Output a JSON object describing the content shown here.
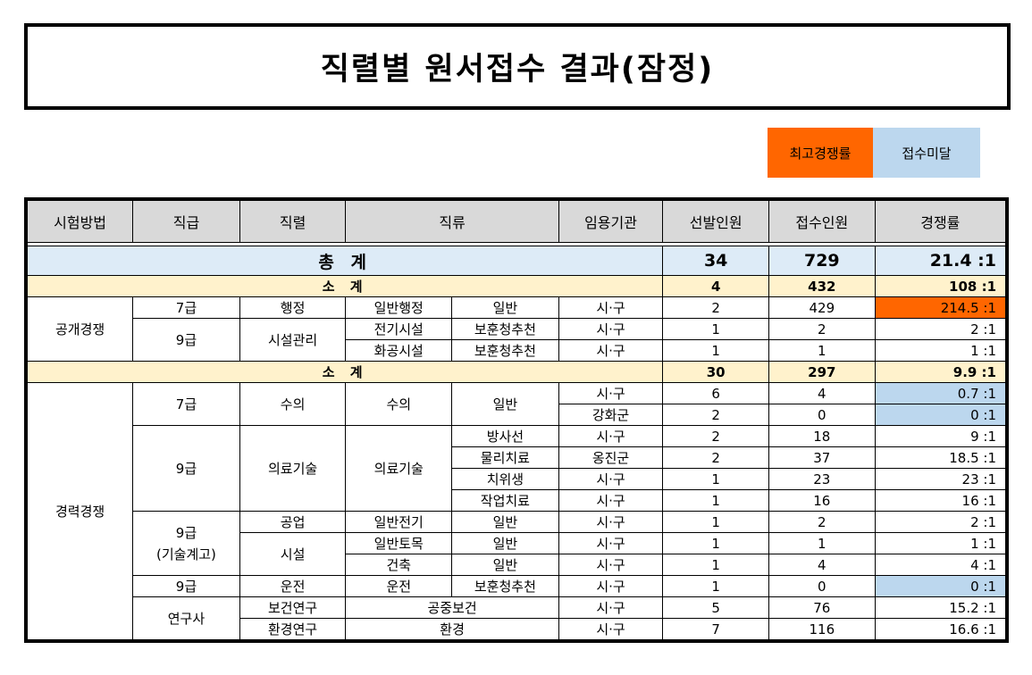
{
  "title": "직렬별 원서접수 결과(잠정)",
  "legend": {
    "max_label": "최고경쟁률",
    "under_label": "접수미달",
    "max_color": "#ff6600",
    "under_color": "#bcd7ee"
  },
  "headers": [
    "시험방법",
    "직급",
    "직렬",
    "직류",
    "임용기관",
    "선발인원",
    "접수인원",
    "경쟁률"
  ],
  "total": {
    "label": "총 계",
    "selected": "34",
    "applied": "729",
    "ratio": "21.4 :1"
  },
  "open": {
    "method": "공개경쟁",
    "subtotal": {
      "label": "소 계",
      "selected": "4",
      "applied": "432",
      "ratio": "108 :1"
    },
    "rows": [
      {
        "grade": "7급",
        "series": "행정",
        "cat1": "일반행정",
        "cat2": "일반",
        "org": "시·구",
        "selected": "2",
        "applied": "429",
        "ratio": "214.5 :1"
      },
      {
        "grade": "9급",
        "series": "시설관리",
        "cat1": "전기시설",
        "cat2": "보훈청추천",
        "org": "시·구",
        "selected": "1",
        "applied": "2",
        "ratio": "2 :1"
      },
      {
        "cat1": "화공시설",
        "cat2": "보훈청추천",
        "org": "시·구",
        "selected": "1",
        "applied": "1",
        "ratio": "1 :1"
      }
    ]
  },
  "career": {
    "method": "경력경쟁",
    "subtotal": {
      "label": "소 계",
      "selected": "30",
      "applied": "297",
      "ratio": "9.9 :1"
    },
    "rows": [
      {
        "grade": "7급",
        "series": "수의",
        "cat1": "수의",
        "cat2": "일반",
        "org": "시·구",
        "selected": "6",
        "applied": "4",
        "ratio": "0.7 :1"
      },
      {
        "org": "강화군",
        "selected": "2",
        "applied": "0",
        "ratio": "0 :1"
      },
      {
        "grade": "9급",
        "series": "의료기술",
        "cat1": "의료기술",
        "cat2": "방사선",
        "org": "시·구",
        "selected": "2",
        "applied": "18",
        "ratio": "9 :1"
      },
      {
        "cat2": "물리치료",
        "org": "옹진군",
        "selected": "2",
        "applied": "37",
        "ratio": "18.5 :1"
      },
      {
        "cat2": "치위생",
        "org": "시·구",
        "selected": "1",
        "applied": "23",
        "ratio": "23 :1"
      },
      {
        "cat2": "작업치료",
        "org": "시·구",
        "selected": "1",
        "applied": "16",
        "ratio": "16 :1"
      },
      {
        "grade": "9급\n(기술계고)",
        "grade_line1": "9급",
        "grade_line2": "(기술계고)",
        "series": "공업",
        "cat1": "일반전기",
        "cat2": "일반",
        "org": "시·구",
        "selected": "1",
        "applied": "2",
        "ratio": "2 :1"
      },
      {
        "series": "시설",
        "cat1": "일반토목",
        "cat2": "일반",
        "org": "시·구",
        "selected": "1",
        "applied": "1",
        "ratio": "1 :1"
      },
      {
        "cat1": "건축",
        "cat2": "일반",
        "org": "시·구",
        "selected": "1",
        "applied": "4",
        "ratio": "4 :1"
      },
      {
        "grade": "9급",
        "series": "운전",
        "cat1": "운전",
        "cat2": "보훈청추천",
        "org": "시·구",
        "selected": "1",
        "applied": "0",
        "ratio": "0 :1"
      },
      {
        "grade": "연구사",
        "series": "보건연구",
        "cat": "공중보건",
        "org": "시·구",
        "selected": "5",
        "applied": "76",
        "ratio": "15.2 :1"
      },
      {
        "series": "환경연구",
        "cat": "환경",
        "org": "시·구",
        "selected": "7",
        "applied": "116",
        "ratio": "16.6 :1"
      }
    ]
  }
}
